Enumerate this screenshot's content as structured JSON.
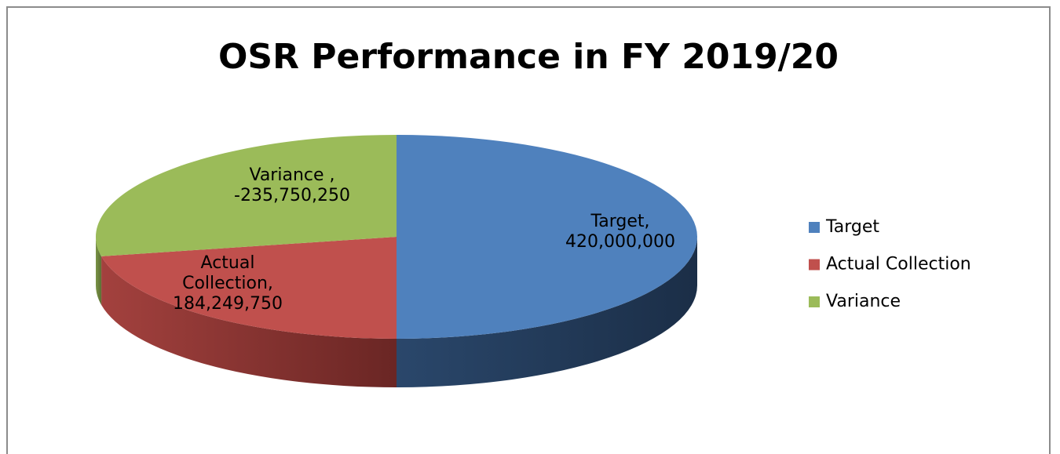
{
  "chart_data": {
    "type": "pie3d",
    "title": "OSR Performance in FY 2019/20",
    "categories": [
      "Target",
      "Actual Collection",
      "Variance"
    ],
    "values": [
      420000000,
      184249750,
      -235750250
    ],
    "value_labels": [
      "Target, 420,000,000",
      "Actual Collection, 184,249,750",
      "Variance , -235,750,250"
    ],
    "colors": [
      "#4f81bd",
      "#c0504d",
      "#9bbb59"
    ],
    "legend": "right"
  }
}
